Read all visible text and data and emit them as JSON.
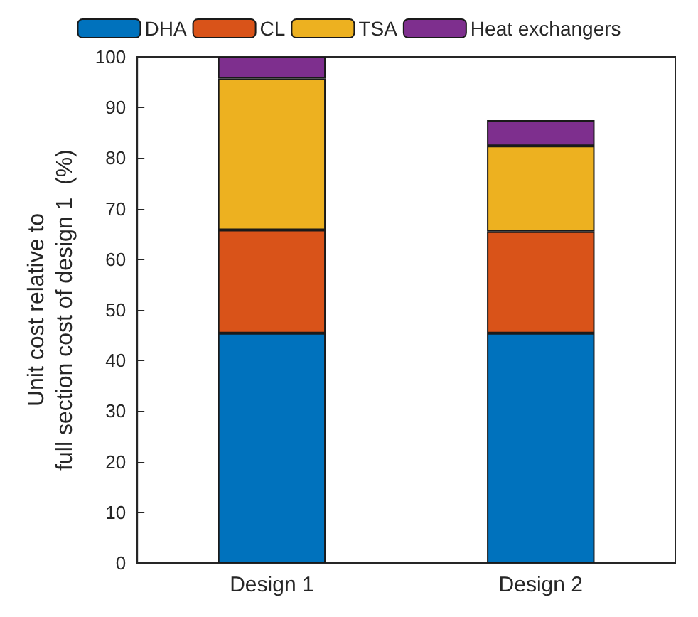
{
  "chart_data": {
    "type": "bar",
    "stacked": true,
    "ylabel": "Unit cost relative to\nfull section cost of design 1  (%)",
    "categories": [
      "Design 1",
      "Design 2"
    ],
    "series": [
      {
        "name": "DHA",
        "color": "#0072bd",
        "values": [
          45.4,
          45.4
        ]
      },
      {
        "name": "CL",
        "color": "#d95319",
        "values": [
          20.4,
          20.1
        ]
      },
      {
        "name": "TSA",
        "color": "#edb120",
        "values": [
          29.9,
          16.9
        ]
      },
      {
        "name": "Heat exchangers",
        "color": "#7e2f8e",
        "values": [
          4.3,
          5.1
        ]
      }
    ],
    "ylim": [
      0,
      100
    ],
    "yticks": [
      0,
      10,
      20,
      30,
      40,
      50,
      60,
      70,
      80,
      90,
      100
    ],
    "legend": "top",
    "grid": false
  }
}
